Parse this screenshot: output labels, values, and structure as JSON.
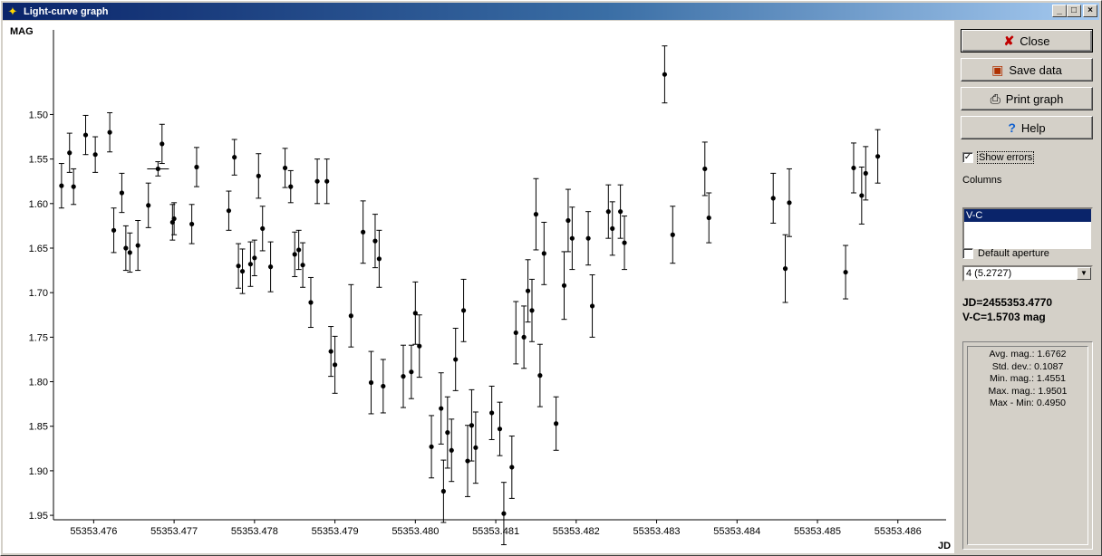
{
  "window": {
    "title": "Light-curve graph"
  },
  "titlebar_buttons": {
    "minimize": "_",
    "maximize": "□",
    "close": "×"
  },
  "buttons": {
    "close": "Close",
    "save": "Save data",
    "print": "Print graph",
    "help": "Help"
  },
  "show_errors": {
    "label": "Show errors",
    "checked": true
  },
  "columns": {
    "label": "Columns",
    "items": [
      "V-C"
    ],
    "selected": "V-C"
  },
  "default_aperture": {
    "label": "Default aperture",
    "checked": false
  },
  "aperture_select": {
    "value": "4 (5.2727)"
  },
  "readout": {
    "jd": "JD=2455353.4770",
    "vc": "V-C=1.5703 mag"
  },
  "stats": [
    "Avg. mag.: 1.6762",
    "Std. dev.: 0.1087",
    "Min. mag.: 1.4551",
    "Max. mag.: 1.9501",
    "Max - Min: 0.4950"
  ],
  "chart_data": {
    "type": "scatter",
    "xlabel": "JD",
    "ylabel": "MAG",
    "xlim": [
      55353.4755,
      55353.4866
    ],
    "ylim": [
      1.955,
      1.405
    ],
    "y_inverted": true,
    "error_bars": true,
    "xticks": [
      "55353.476",
      "55353.477",
      "55353.478",
      "55353.479",
      "55353.480",
      "55353.481",
      "55353.482",
      "55353.483",
      "55353.484",
      "55353.485",
      "55353.486"
    ],
    "yticks": [
      "1.50",
      "1.55",
      "1.60",
      "1.65",
      "1.70",
      "1.75",
      "1.80",
      "1.85",
      "1.90",
      "1.95"
    ],
    "points": [
      [
        55353.4756,
        1.58,
        0.025
      ],
      [
        55353.4757,
        1.543,
        0.022
      ],
      [
        55353.47575,
        1.581,
        0.02
      ],
      [
        55353.4759,
        1.523,
        0.022
      ],
      [
        55353.47602,
        1.545,
        0.02
      ],
      [
        55353.4762,
        1.52,
        0.022
      ],
      [
        55353.47625,
        1.63,
        0.025
      ],
      [
        55353.47635,
        1.588,
        0.022
      ],
      [
        55353.4764,
        1.65,
        0.025
      ],
      [
        55353.47645,
        1.655,
        0.022
      ],
      [
        55353.47655,
        1.647,
        0.028
      ],
      [
        55353.47668,
        1.602,
        0.025
      ],
      [
        55353.4768,
        1.561,
        0.008
      ],
      [
        55353.47685,
        1.533,
        0.022
      ],
      [
        55353.47698,
        1.621,
        0.02
      ],
      [
        55353.477,
        1.617,
        0.018
      ],
      [
        55353.47722,
        1.623,
        0.022
      ],
      [
        55353.47728,
        1.559,
        0.022
      ],
      [
        55353.47768,
        1.608,
        0.022
      ],
      [
        55353.47775,
        1.548,
        0.02
      ],
      [
        55353.4778,
        1.67,
        0.025
      ],
      [
        55353.47785,
        1.676,
        0.025
      ],
      [
        55353.47795,
        1.668,
        0.025
      ],
      [
        55353.478,
        1.661,
        0.02
      ],
      [
        55353.47805,
        1.569,
        0.025
      ],
      [
        55353.4781,
        1.628,
        0.025
      ],
      [
        55353.4782,
        1.671,
        0.028
      ],
      [
        55353.47838,
        1.56,
        0.022
      ],
      [
        55353.47845,
        1.581,
        0.018
      ],
      [
        55353.4785,
        1.657,
        0.025
      ],
      [
        55353.47855,
        1.652,
        0.022
      ],
      [
        55353.4786,
        1.669,
        0.025
      ],
      [
        55353.4787,
        1.711,
        0.028
      ],
      [
        55353.47878,
        1.575,
        0.025
      ],
      [
        55353.4789,
        1.575,
        0.025
      ],
      [
        55353.47895,
        1.766,
        0.028
      ],
      [
        55353.479,
        1.781,
        0.032
      ],
      [
        55353.4792,
        1.726,
        0.035
      ],
      [
        55353.47935,
        1.632,
        0.035
      ],
      [
        55353.47945,
        1.801,
        0.035
      ],
      [
        55353.4795,
        1.642,
        0.03
      ],
      [
        55353.47955,
        1.662,
        0.032
      ],
      [
        55353.4796,
        1.805,
        0.03
      ],
      [
        55353.47985,
        1.794,
        0.035
      ],
      [
        55353.47995,
        1.789,
        0.03
      ],
      [
        55353.48,
        1.723,
        0.035
      ],
      [
        55353.48005,
        1.76,
        0.035
      ],
      [
        55353.4802,
        1.873,
        0.035
      ],
      [
        55353.48032,
        1.83,
        0.04
      ],
      [
        55353.48035,
        1.923,
        0.035
      ],
      [
        55353.4804,
        1.857,
        0.04
      ],
      [
        55353.48045,
        1.877,
        0.035
      ],
      [
        55353.4805,
        1.775,
        0.035
      ],
      [
        55353.4806,
        1.72,
        0.035
      ],
      [
        55353.48065,
        1.889,
        0.04
      ],
      [
        55353.4807,
        1.849,
        0.04
      ],
      [
        55353.48075,
        1.874,
        0.04
      ],
      [
        55353.48095,
        1.835,
        0.03
      ],
      [
        55353.48105,
        1.853,
        0.03
      ],
      [
        55353.4811,
        1.948,
        0.035
      ],
      [
        55353.4812,
        1.896,
        0.035
      ],
      [
        55353.48125,
        1.745,
        0.035
      ],
      [
        55353.48135,
        1.75,
        0.035
      ],
      [
        55353.4814,
        1.698,
        0.035
      ],
      [
        55353.48145,
        1.72,
        0.035
      ],
      [
        55353.4815,
        1.612,
        0.04
      ],
      [
        55353.48155,
        1.793,
        0.035
      ],
      [
        55353.4816,
        1.656,
        0.035
      ],
      [
        55353.48175,
        1.847,
        0.03
      ],
      [
        55353.48185,
        1.692,
        0.038
      ],
      [
        55353.4819,
        1.619,
        0.035
      ],
      [
        55353.48195,
        1.639,
        0.035
      ],
      [
        55353.48215,
        1.639,
        0.03
      ],
      [
        55353.4822,
        1.715,
        0.035
      ],
      [
        55353.4824,
        1.609,
        0.03
      ],
      [
        55353.48245,
        1.628,
        0.03
      ],
      [
        55353.48255,
        1.609,
        0.03
      ],
      [
        55353.4826,
        1.644,
        0.03
      ],
      [
        55353.4831,
        1.455,
        0.032
      ],
      [
        55353.4832,
        1.635,
        0.032
      ],
      [
        55353.4836,
        1.561,
        0.03
      ],
      [
        55353.48365,
        1.616,
        0.028
      ],
      [
        55353.48445,
        1.594,
        0.028
      ],
      [
        55353.4846,
        1.673,
        0.038
      ],
      [
        55353.48465,
        1.599,
        0.038
      ],
      [
        55353.48535,
        1.677,
        0.03
      ],
      [
        55353.48545,
        1.56,
        0.028
      ],
      [
        55353.48555,
        1.591,
        0.032
      ],
      [
        55353.4856,
        1.566,
        0.03
      ],
      [
        55353.48575,
        1.547,
        0.03
      ]
    ]
  }
}
